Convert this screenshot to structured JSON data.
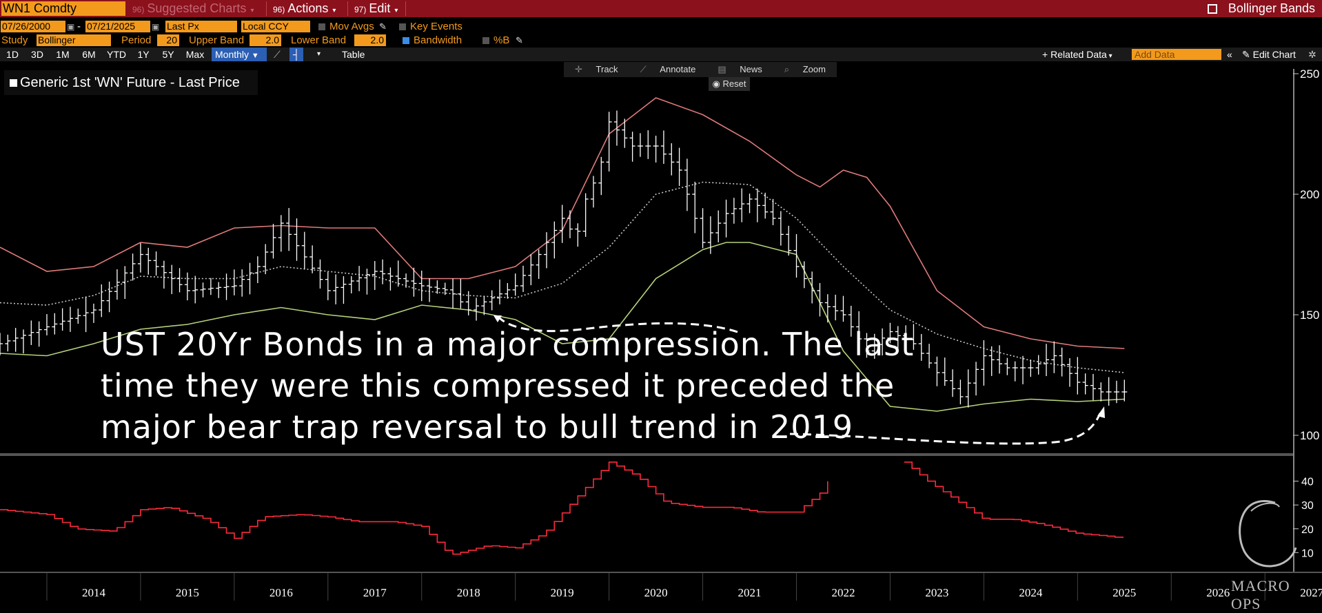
{
  "toolbar": {
    "ticker": "WN1 Comdty",
    "suggested_charts": "Suggested Charts",
    "suggested_num": "96)",
    "actions": "Actions",
    "actions_num": "96)",
    "edit": "Edit",
    "edit_num": "97)",
    "study_title": "Bollinger Bands"
  },
  "settings": {
    "start_date": "07/26/2000",
    "end_date": "07/21/2025",
    "price_field": "Last Px",
    "currency": "Local CCY",
    "mov_avgs": "Mov Avgs",
    "key_events": "Key Events",
    "study_label": "Study",
    "study_value": "Bollinger",
    "period_label": "Period",
    "period_value": "20",
    "upper_label": "Upper Band",
    "upper_value": "2.0",
    "lower_label": "Lower Band",
    "lower_value": "2.0",
    "bandwidth": "Bandwidth",
    "pctb": "%B"
  },
  "ranges": [
    "1D",
    "3D",
    "1M",
    "6M",
    "YTD",
    "1Y",
    "5Y",
    "Max"
  ],
  "frequency": "Monthly",
  "right_tools": {
    "table": "Table",
    "related_data": "Related Data",
    "add_data": "Add Data",
    "edit_chart": "Edit Chart"
  },
  "chart_tools": {
    "track": "Track",
    "annotate": "Annotate",
    "news": "News",
    "zoom": "Zoom",
    "reset": "Reset"
  },
  "legend": "Generic 1st 'WN' Future - Last Price",
  "annotation": {
    "line1": "UST 20Yr Bonds in a major compression. The last",
    "line2": "time they were this compressed it preceded the",
    "line3": "major bear trap reversal to bull trend in 2019"
  },
  "watermark": "MACRO OPS",
  "colors": {
    "toolbar_bg": "#8b111d",
    "amber": "#f39a1c",
    "upper_band": "#e07b7b",
    "lower_band": "#b6d37a",
    "middle_band": "#c8c8c8",
    "price": "#ffffff",
    "bandwidth": "#ff2a3c"
  },
  "chart_data": [
    {
      "type": "line",
      "title": "",
      "x_ticks": [
        "2014",
        "2015",
        "2016",
        "2017",
        "2018",
        "2019",
        "2020",
        "2021",
        "2022",
        "2023",
        "2024",
        "2025",
        "2026",
        "2027"
      ],
      "y_ticks": [
        100,
        150,
        200,
        250
      ],
      "ylim": [
        92,
        252
      ],
      "xlim": [
        2013.5,
        2027.3
      ],
      "grid": false,
      "legend_position": "top-left",
      "series": [
        {
          "name": "Generic 1st 'WN' Future - Last Price",
          "x": [
            2013.5,
            2014.0,
            2014.5,
            2015.0,
            2015.5,
            2016.0,
            2016.25,
            2016.5,
            2017.0,
            2017.5,
            2018.0,
            2018.3,
            2018.5,
            2018.75,
            2019.0,
            2019.25,
            2019.5,
            2019.65,
            2019.75,
            2019.9,
            2020.0,
            2020.25,
            2020.5,
            2020.75,
            2021.0,
            2021.25,
            2021.5,
            2021.75,
            2022.0,
            2022.25,
            2022.5,
            2022.75,
            2023.0,
            2023.25,
            2023.5,
            2023.75,
            2024.0,
            2024.25,
            2024.5,
            2024.75,
            2025.0,
            2025.25,
            2025.5
          ],
          "y": [
            138,
            145,
            152,
            175,
            160,
            162,
            170,
            188,
            160,
            168,
            162,
            160,
            152,
            157,
            162,
            175,
            190,
            182,
            198,
            210,
            230,
            220,
            220,
            210,
            180,
            192,
            198,
            190,
            170,
            155,
            150,
            135,
            143,
            138,
            126,
            116,
            133,
            128,
            128,
            133,
            122,
            118,
            118
          ]
        },
        {
          "name": "",
          "x": [
            2013.5,
            2014.0,
            2014.5,
            2015.0,
            2015.5,
            2016.0,
            2016.5,
            2017.0,
            2017.5,
            2018.0,
            2018.5,
            2019.0,
            2019.5,
            2020.0,
            2020.5,
            2021.0,
            2021.5,
            2022.0,
            2022.25,
            2022.5,
            2022.75,
            2023.0,
            2023.5,
            2024.0,
            2024.5,
            2025.0,
            2025.5
          ],
          "y": [
            178,
            168,
            170,
            180,
            178,
            186,
            187,
            186,
            186,
            165,
            165,
            170,
            185,
            225,
            240,
            233,
            222,
            208,
            203,
            210,
            207,
            195,
            160,
            145,
            140,
            137,
            136
          ]
        },
        {
          "name": "",
          "x": [
            2013.5,
            2014.0,
            2014.5,
            2015.0,
            2015.5,
            2016.0,
            2016.5,
            2017.0,
            2017.5,
            2018.0,
            2018.5,
            2019.0,
            2019.5,
            2020.0,
            2020.5,
            2021.0,
            2021.5,
            2022.0,
            2022.5,
            2023.0,
            2023.5,
            2024.0,
            2024.5,
            2025.0,
            2025.5
          ],
          "y": [
            155,
            154,
            158,
            166,
            165,
            165,
            170,
            168,
            166,
            160,
            158,
            157,
            163,
            178,
            200,
            205,
            204,
            190,
            170,
            152,
            142,
            136,
            131,
            128,
            126
          ]
        },
        {
          "name": "",
          "x": [
            2013.5,
            2014.0,
            2014.5,
            2015.0,
            2015.5,
            2016.0,
            2016.5,
            2017.0,
            2017.5,
            2018.0,
            2018.5,
            2019.0,
            2019.5,
            2020.0,
            2020.5,
            2021.0,
            2021.25,
            2021.5,
            2022.0,
            2022.5,
            2023.0,
            2023.5,
            2024.0,
            2024.5,
            2025.0,
            2025.5
          ],
          "y": [
            134,
            133,
            138,
            144,
            146,
            150,
            153,
            150,
            148,
            154,
            152,
            148,
            138,
            140,
            165,
            177,
            180,
            180,
            175,
            135,
            112,
            110,
            113,
            115,
            114,
            115
          ]
        }
      ]
    },
    {
      "type": "line",
      "title": "",
      "y_ticks": [
        10,
        20,
        30,
        40
      ],
      "ylim": [
        2,
        50
      ],
      "xlim": [
        2013.5,
        2027.3
      ],
      "grid": false,
      "series": [
        {
          "name": "",
          "x": [
            2013.5,
            2014.0,
            2014.3,
            2014.7,
            2015.0,
            2015.3,
            2015.7,
            2016.0,
            2016.3,
            2016.7,
            2017.0,
            2017.3,
            2017.7,
            2018.0,
            2018.3,
            2018.7,
            2019.0,
            2019.3,
            2019.6,
            2020.0,
            2020.3,
            2020.6,
            2021.0,
            2021.3,
            2021.6,
            2022.0,
            2022.25,
            2022.35,
            2022.4
          ],
          "y": [
            28,
            26,
            20,
            19,
            28,
            29,
            24,
            16,
            25,
            26,
            25,
            23,
            23,
            21,
            9,
            13,
            12,
            18,
            31,
            48,
            42,
            31,
            29,
            29,
            27,
            27,
            35,
            41,
            48
          ]
        },
        {
          "name": "",
          "x": [
            2023.15,
            2023.4,
            2023.7,
            2024.0,
            2024.3,
            2024.6,
            2025.0,
            2025.3,
            2025.5
          ],
          "y": [
            48,
            40,
            32,
            24,
            24,
            22,
            18,
            17,
            16
          ]
        }
      ]
    }
  ]
}
